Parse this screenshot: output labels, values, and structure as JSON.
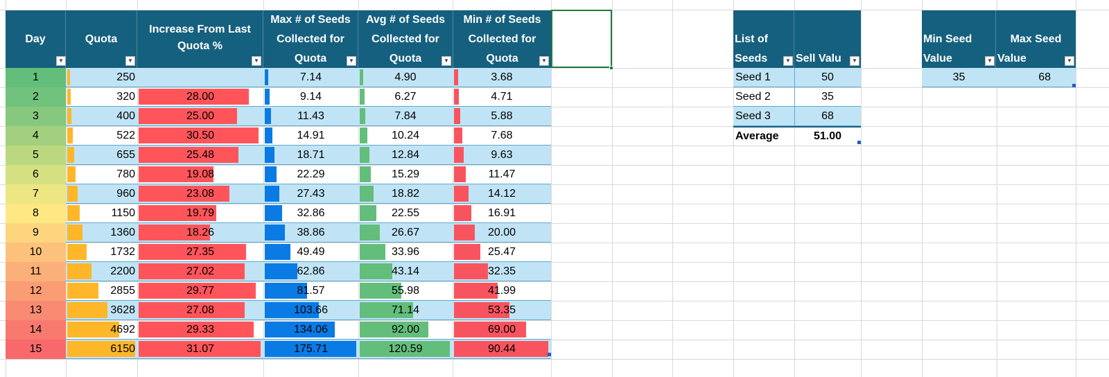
{
  "main_table": {
    "headers": {
      "day": "Day",
      "quota": "Quota",
      "increase": [
        "Increase From Last",
        "Quota %"
      ],
      "max_seeds": [
        "Max # of Seeds",
        "Collected for",
        "Quota"
      ],
      "avg_seeds": [
        "Avg # of Seeds",
        "Collected for",
        "Quota"
      ],
      "min_seeds": [
        "Min # of Seeds",
        "Collected for",
        "Quota"
      ]
    },
    "rows": [
      {
        "day": "1",
        "quota": "250",
        "increase": "",
        "max": "7.14",
        "avg": "4.90",
        "min": "3.68",
        "day_color": "#63be7b"
      },
      {
        "day": "2",
        "quota": "320",
        "increase": "28.00",
        "max": "9.14",
        "avg": "6.27",
        "min": "4.71",
        "day_color": "#71c27c"
      },
      {
        "day": "3",
        "quota": "400",
        "increase": "25.00",
        "max": "11.43",
        "avg": "7.84",
        "min": "5.88",
        "day_color": "#86c87d"
      },
      {
        "day": "4",
        "quota": "522",
        "increase": "30.50",
        "max": "14.91",
        "avg": "10.24",
        "min": "7.68",
        "day_color": "#a2d07f"
      },
      {
        "day": "5",
        "quota": "655",
        "increase": "25.48",
        "max": "18.71",
        "avg": "12.84",
        "min": "9.63",
        "day_color": "#bbd880"
      },
      {
        "day": "6",
        "quota": "780",
        "increase": "19.08",
        "max": "22.29",
        "avg": "15.29",
        "min": "11.47",
        "day_color": "#d5e082"
      },
      {
        "day": "7",
        "quota": "960",
        "increase": "23.08",
        "max": "27.43",
        "avg": "18.82",
        "min": "14.12",
        "day_color": "#ede683"
      },
      {
        "day": "8",
        "quota": "1150",
        "increase": "19.79",
        "max": "32.86",
        "avg": "22.55",
        "min": "16.91",
        "day_color": "#fee883"
      },
      {
        "day": "9",
        "quota": "1360",
        "increase": "18.26",
        "max": "38.86",
        "avg": "26.67",
        "min": "20.00",
        "day_color": "#fdd57f"
      },
      {
        "day": "10",
        "quota": "1732",
        "increase": "27.35",
        "max": "49.49",
        "avg": "33.96",
        "min": "25.47",
        "day_color": "#fcc27c"
      },
      {
        "day": "11",
        "quota": "2200",
        "increase": "27.02",
        "max": "62.86",
        "avg": "43.14",
        "min": "32.35",
        "day_color": "#fbb079"
      },
      {
        "day": "12",
        "quota": "2855",
        "increase": "29.77",
        "max": "81.57",
        "avg": "55.98",
        "min": "41.99",
        "day_color": "#fa9d75"
      },
      {
        "day": "13",
        "quota": "3628",
        "increase": "27.08",
        "max": "103.66",
        "avg": "71.14",
        "min": "53.35",
        "day_color": "#f98b72"
      },
      {
        "day": "14",
        "quota": "4692",
        "increase": "29.33",
        "max": "134.06",
        "avg": "92.00",
        "min": "69.00",
        "day_color": "#f8796e"
      },
      {
        "day": "15",
        "quota": "6150",
        "increase": "31.07",
        "max": "175.71",
        "avg": "120.59",
        "min": "90.44",
        "day_color": "#f8696b"
      }
    ]
  },
  "seeds_table": {
    "headers": {
      "list": [
        "List of",
        "Seeds"
      ],
      "sell": "Sell Valu"
    },
    "rows": [
      {
        "name": "Seed 1",
        "value": "50"
      },
      {
        "name": "Seed 2",
        "value": "35"
      },
      {
        "name": "Seed 3",
        "value": "68"
      }
    ],
    "total": {
      "label": "Average",
      "value": "51.00"
    }
  },
  "minmax_table": {
    "headers": {
      "min": [
        "Min Seed",
        "Value"
      ],
      "max": [
        "Max Seed",
        "Value"
      ]
    },
    "row": {
      "min": "35",
      "max": "68"
    }
  },
  "colors": {
    "header_bg": "#15607e",
    "band": "#c0e4f5",
    "quota_bar": "#ffb628",
    "increase_bar": "#ff555a",
    "max_bar": "#0a7ae5",
    "avg_bar": "#63be7b",
    "min_bar": "#f8545f",
    "selected_cell_border": "#1e7a3d"
  },
  "icons": {
    "filter": "filter-dropdown-icon"
  }
}
